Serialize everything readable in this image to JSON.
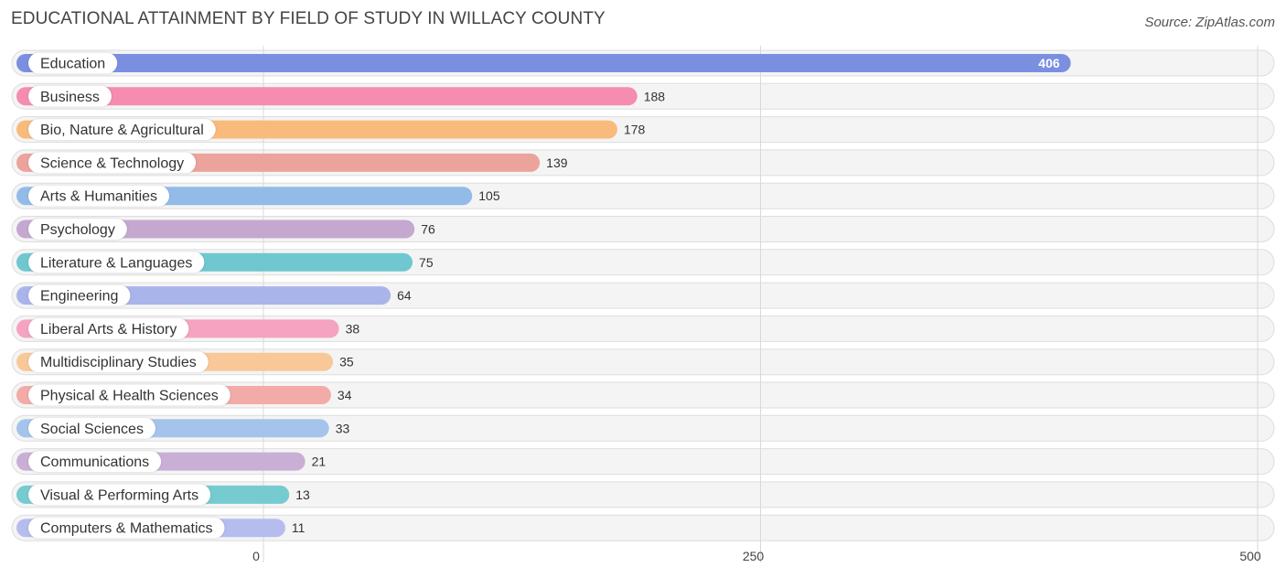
{
  "title": "EDUCATIONAL ATTAINMENT BY FIELD OF STUDY IN WILLACY COUNTY",
  "source": "Source: ZipAtlas.com",
  "chart_data": {
    "type": "bar",
    "orientation": "horizontal",
    "title": "EDUCATIONAL ATTAINMENT BY FIELD OF STUDY IN WILLACY COUNTY",
    "categories": [
      "Education",
      "Business",
      "Bio, Nature & Agricultural",
      "Science & Technology",
      "Arts & Humanities",
      "Psychology",
      "Literature & Languages",
      "Engineering",
      "Liberal Arts & History",
      "Multidisciplinary Studies",
      "Physical & Health Sciences",
      "Social Sciences",
      "Communications",
      "Visual & Performing Arts",
      "Computers & Mathematics"
    ],
    "values": [
      406,
      188,
      178,
      139,
      105,
      76,
      75,
      64,
      38,
      35,
      34,
      33,
      21,
      13,
      11
    ],
    "colors": [
      "#7b8fe0",
      "#f68caf",
      "#f9bb7c",
      "#eba39c",
      "#93bbe8",
      "#c4a8d0",
      "#6fc7cf",
      "#a9b5ea",
      "#f5a3c0",
      "#f9c898",
      "#f2aba7",
      "#a5c4ec",
      "#c9afd6",
      "#76cbd0",
      "#b4bdee"
    ],
    "xlim": [
      0,
      500
    ],
    "xticks": [
      0,
      250,
      500
    ],
    "xtick_labels": [
      "0",
      "250",
      "500"
    ],
    "grid": true,
    "xlabel": "",
    "ylabel": ""
  }
}
